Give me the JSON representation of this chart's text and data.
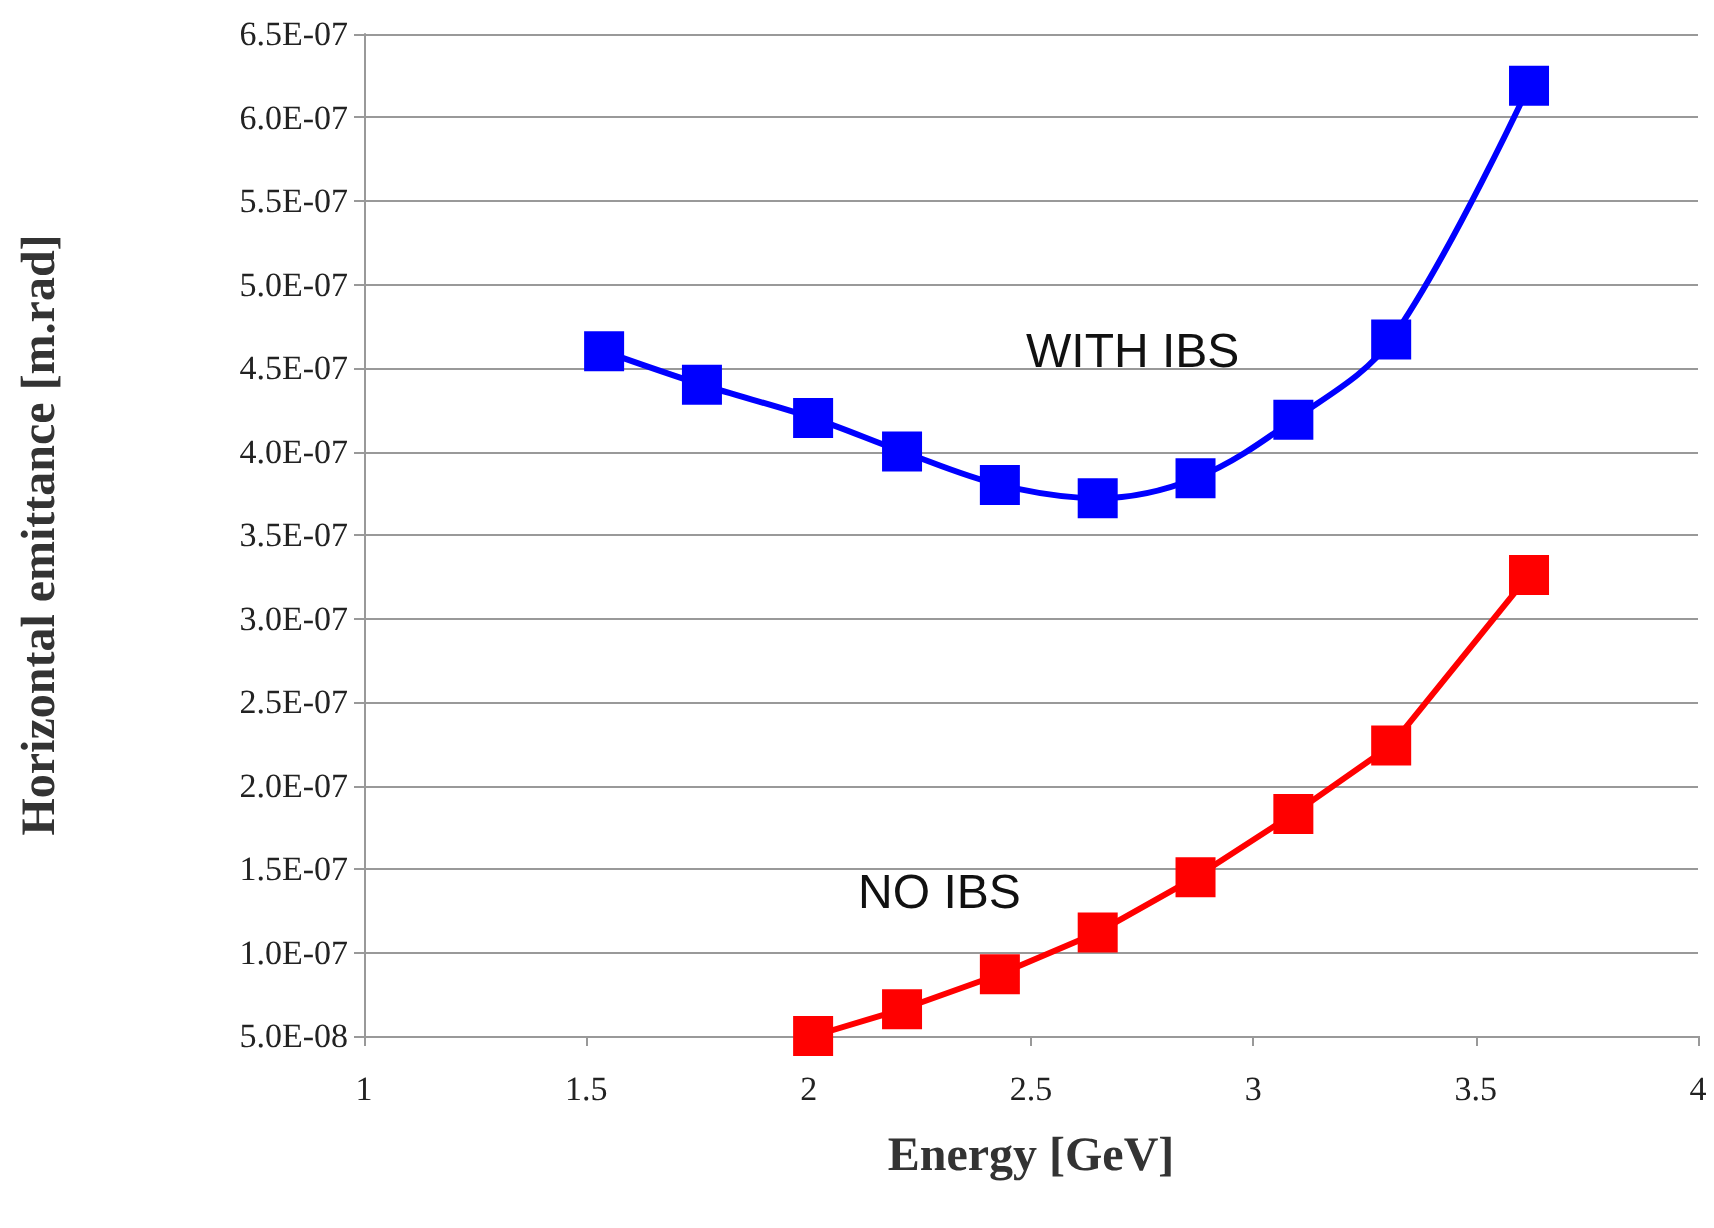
{
  "chart_data": {
    "type": "line",
    "xlabel": "Energy [GeV]",
    "ylabel": "Horizontal emittance [m.rad]",
    "xlim": [
      1,
      4
    ],
    "xticks": [
      1,
      1.5,
      2,
      2.5,
      3,
      3.5,
      4
    ],
    "ylim": [
      5e-08,
      6.5e-07
    ],
    "yticks": [
      {
        "value": 5e-08,
        "label": "5.0E-08"
      },
      {
        "value": 1e-07,
        "label": "1.0E-07"
      },
      {
        "value": 1.5e-07,
        "label": "1.5E-07"
      },
      {
        "value": 2e-07,
        "label": "2.0E-07"
      },
      {
        "value": 2.5e-07,
        "label": "2.5E-07"
      },
      {
        "value": 3e-07,
        "label": "3.0E-07"
      },
      {
        "value": 3.5e-07,
        "label": "3.5E-07"
      },
      {
        "value": 4e-07,
        "label": "4.0E-07"
      },
      {
        "value": 4.5e-07,
        "label": "4.5E-07"
      },
      {
        "value": 5e-07,
        "label": "5.0E-07"
      },
      {
        "value": 5.5e-07,
        "label": "5.5E-07"
      },
      {
        "value": 6e-07,
        "label": "6.0E-07"
      },
      {
        "value": 6.5e-07,
        "label": "6.5E-07"
      }
    ],
    "grid": "y",
    "marker": "square",
    "line_style": "solid",
    "series": [
      {
        "name": "WITH IBS",
        "color": "#0000ff",
        "x": [
          1.54,
          1.76,
          2.01,
          2.21,
          2.43,
          2.65,
          2.87,
          3.09,
          3.31,
          3.62
        ],
        "values": [
          4.6e-07,
          4.4e-07,
          4.2e-07,
          4e-07,
          3.8e-07,
          3.72e-07,
          3.84e-07,
          4.19e-07,
          4.67e-07,
          6.19e-07
        ]
      },
      {
        "name": "NO IBS",
        "color": "#ff0000",
        "x": [
          2.01,
          2.21,
          2.43,
          2.65,
          2.87,
          3.09,
          3.31,
          3.62
        ],
        "values": [
          5e-08,
          6.6e-08,
          8.7e-08,
          1.12e-07,
          1.45e-07,
          1.83e-07,
          2.24e-07,
          3.26e-07
        ]
      }
    ]
  }
}
